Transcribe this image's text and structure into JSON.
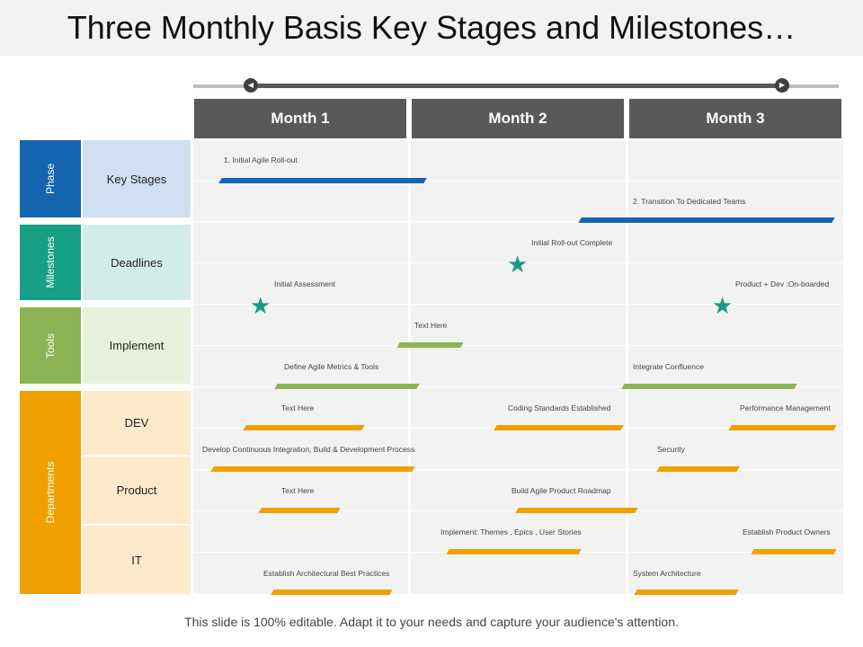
{
  "title": "Three Monthly Basis Key Stages and Milestones…",
  "footer": "This slide is 100% editable. Adapt it to your needs and capture your audience's attention.",
  "colors": {
    "header": "#595959",
    "phase": "#1565b0",
    "milestones": "#16a085",
    "tools": "#8db454",
    "departments": "#f0a000",
    "keystages_bg": "#d0e0f2",
    "deadlines_bg": "#d2ece7",
    "implement_bg": "#e8f1dc",
    "dept_bg": "#fdeacb",
    "bar_blue": "#1565b0",
    "bar_green": "#8db454",
    "bar_orange": "#f0a000",
    "star": "#1a9a82"
  },
  "months": [
    "Month 1",
    "Month 2",
    "Month 3"
  ],
  "categories": [
    {
      "label": "Phase",
      "color": "phase"
    },
    {
      "label": "Milestones",
      "color": "milestones"
    },
    {
      "label": "Tools",
      "color": "tools"
    },
    {
      "label": "Departments",
      "color": "departments"
    }
  ],
  "subcategories": [
    {
      "label": "Key Stages",
      "bg": "keystages_bg"
    },
    {
      "label": "Deadlines",
      "bg": "deadlines_bg"
    },
    {
      "label": "Implement",
      "bg": "implement_bg"
    },
    {
      "label": "DEV",
      "bg": "dept_bg"
    },
    {
      "label": "Product",
      "bg": "dept_bg"
    },
    {
      "label": "IT",
      "bg": "dept_bg"
    }
  ],
  "tasks": [
    {
      "label": "1. Initial Agile Roll-out",
      "type": "bar",
      "color": "bar_blue"
    },
    {
      "label": "2. Transition To Dedicated Teams",
      "type": "bar",
      "color": "bar_blue"
    },
    {
      "label": "Initial Roll-out Complete",
      "type": "milestone"
    },
    {
      "label": "Initial Assessment",
      "type": "milestone"
    },
    {
      "label": "Product + Dev :On-boarded",
      "type": "milestone"
    },
    {
      "label": "Text Here",
      "type": "bar",
      "color": "bar_green"
    },
    {
      "label": "Define Agile Metrics & Tools",
      "type": "bar",
      "color": "bar_green"
    },
    {
      "label": "Integrate Confluence",
      "type": "bar",
      "color": "bar_green"
    },
    {
      "label": "Text Here",
      "type": "bar",
      "color": "bar_orange"
    },
    {
      "label": "Coding Standards Established",
      "type": "bar",
      "color": "bar_orange"
    },
    {
      "label": "Performance Management",
      "type": "bar",
      "color": "bar_orange"
    },
    {
      "label": "Develop Continuous Integration, Build & Development Process",
      "type": "bar",
      "color": "bar_orange"
    },
    {
      "label": "Security",
      "type": "bar",
      "color": "bar_orange"
    },
    {
      "label": "Text Here",
      "type": "bar",
      "color": "bar_orange"
    },
    {
      "label": "Build Agile Product Roadmap",
      "type": "bar",
      "color": "bar_orange"
    },
    {
      "label": "Implement: Themes , Epics , User Stories",
      "type": "bar",
      "color": "bar_orange"
    },
    {
      "label": "Establish Product Owners",
      "type": "bar",
      "color": "bar_orange"
    },
    {
      "label": "Establish Architectural Best Practices",
      "type": "bar",
      "color": "bar_orange"
    },
    {
      "label": "System Architecture",
      "type": "bar",
      "color": "bar_orange"
    }
  ]
}
